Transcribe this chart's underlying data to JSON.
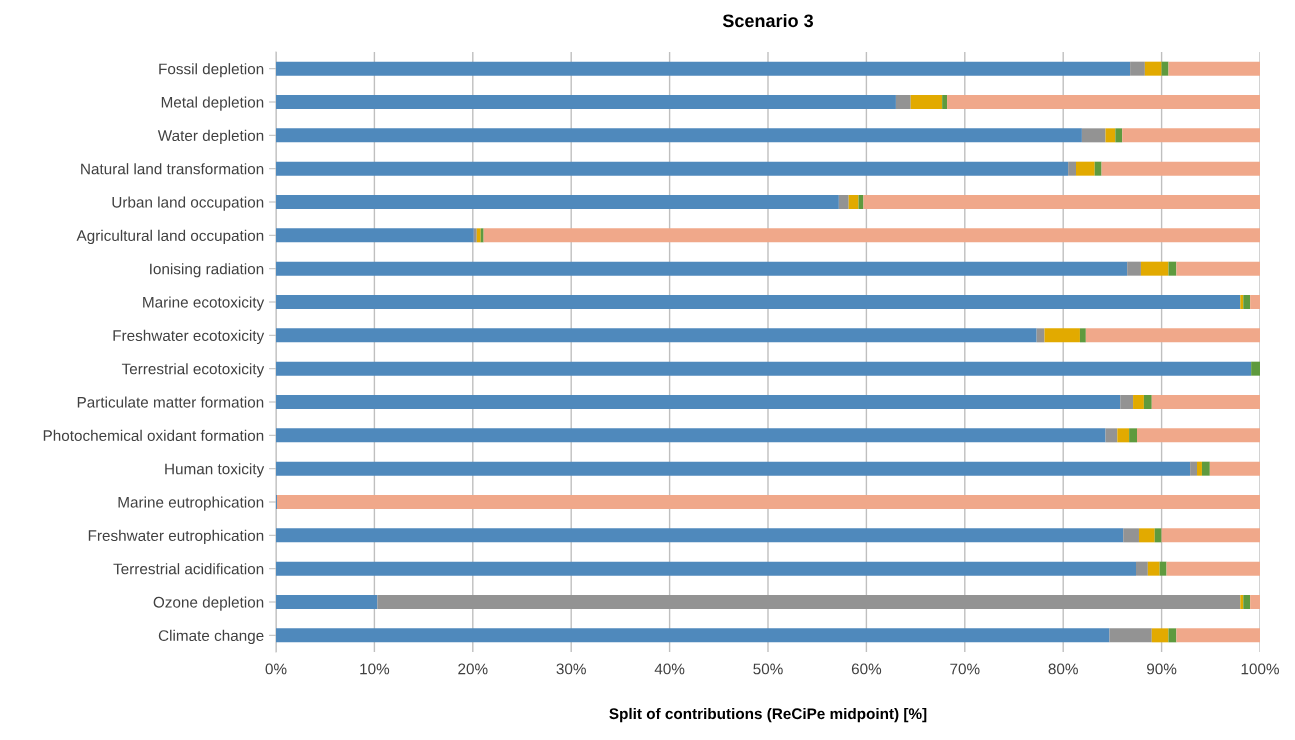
{
  "chart_data": {
    "type": "bar",
    "orientation": "horizontal",
    "stacked": true,
    "title": "Scenario 3",
    "xlabel": "Split of contributions (ReCiPe midpoint) [%]",
    "categories": [
      "Fossil depletion",
      "Metal depletion",
      "Water depletion",
      "Natural land transformation",
      "Urban land occupation",
      "Agricultural land occupation",
      "Ionising radiation",
      "Marine ecotoxicity",
      "Freshwater ecotoxicity",
      "Terrestrial ecotoxicity",
      "Particulate matter formation",
      "Photochemical oxidant formation",
      "Human toxicity",
      "Marine eutrophication",
      "Freshwater eutrophication",
      "Terrestrial acidification",
      "Ozone depletion",
      "Climate change"
    ],
    "series": [
      {
        "color": "#4f89bc",
        "values": [
          86.8,
          63.0,
          81.9,
          80.5,
          57.2,
          20.1,
          86.5,
          98.0,
          77.3,
          99.1,
          85.8,
          84.3,
          92.9,
          0.1,
          86.1,
          87.4,
          10.3,
          84.7
        ]
      },
      {
        "color": "#939393",
        "values": [
          1.5,
          1.5,
          2.4,
          0.8,
          1.0,
          0.3,
          1.4,
          0,
          0.8,
          0,
          1.3,
          1.2,
          0.7,
          0,
          1.6,
          1.2,
          87.7,
          4.3
        ]
      },
      {
        "color": "#e2aa00",
        "values": [
          1.7,
          3.2,
          1.0,
          1.9,
          1.0,
          0.4,
          2.8,
          0.3,
          3.6,
          0,
          1.1,
          1.2,
          0.5,
          0,
          1.6,
          1.2,
          0.3,
          1.7
        ]
      },
      {
        "color": "#5e9a3e",
        "values": [
          0.7,
          0.5,
          0.7,
          0.7,
          0.5,
          0.3,
          0.8,
          0.7,
          0.6,
          0.9,
          0.8,
          0.8,
          0.8,
          0,
          0.7,
          0.7,
          0.7,
          0.8
        ]
      },
      {
        "color": "#f0a88a",
        "values": [
          9.3,
          31.8,
          14.0,
          16.1,
          40.3,
          78.9,
          8.5,
          1.0,
          17.7,
          null,
          11.0,
          12.5,
          5.1,
          99.9,
          10.0,
          9.5,
          1.0,
          8.5
        ]
      }
    ],
    "xlim": [
      0,
      100
    ],
    "xticks": [
      {
        "value": 0,
        "label": "0%"
      },
      {
        "value": 10,
        "label": "10%"
      },
      {
        "value": 20,
        "label": "20%"
      },
      {
        "value": 30,
        "label": "30%"
      },
      {
        "value": 40,
        "label": "40%"
      },
      {
        "value": 50,
        "label": "50%"
      },
      {
        "value": 60,
        "label": "60%"
      },
      {
        "value": 70,
        "label": "70%"
      },
      {
        "value": 80,
        "label": "80%"
      },
      {
        "value": 90,
        "label": "90%"
      },
      {
        "value": 100,
        "label": "100%"
      }
    ],
    "grid": "x"
  }
}
